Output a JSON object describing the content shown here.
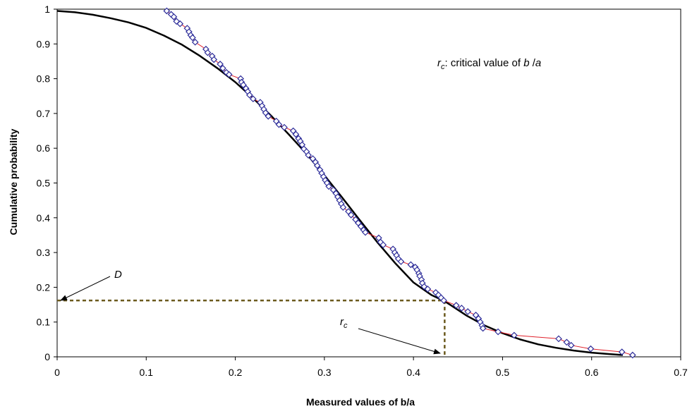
{
  "chart_data": {
    "type": "scatter",
    "xlabel": "Measured values of b/a",
    "ylabel": "Cumulative probability",
    "xlim": [
      0,
      0.7
    ],
    "ylim": [
      0,
      1
    ],
    "x_ticks": [
      0,
      0.1,
      0.2,
      0.3,
      0.4,
      0.5,
      0.6,
      0.7
    ],
    "x_tick_labels": [
      "0",
      "0.1",
      "0.2",
      "0.3",
      "0.4",
      "0.5",
      "0.6",
      "0.7"
    ],
    "y_ticks": [
      0,
      0.1,
      0.2,
      0.3,
      0.4,
      0.5,
      0.6,
      0.7,
      0.8,
      0.9,
      1
    ],
    "y_tick_labels": [
      "0",
      "0.1",
      "0.2",
      "0.3",
      "0.4",
      "0.5",
      "0.6",
      "0.7",
      "0.8",
      "0.9",
      "1"
    ],
    "grid": false,
    "legend": "none",
    "series": [
      {
        "style": "markers-with-line",
        "marker": "diamond",
        "marker_color": "#2e2e9a",
        "line_color": "#e0202a",
        "points": [
          [
            0.123,
            0.995
          ],
          [
            0.128,
            0.985
          ],
          [
            0.131,
            0.978
          ],
          [
            0.134,
            0.965
          ],
          [
            0.138,
            0.958
          ],
          [
            0.146,
            0.945
          ],
          [
            0.148,
            0.935
          ],
          [
            0.15,
            0.925
          ],
          [
            0.152,
            0.918
          ],
          [
            0.155,
            0.905
          ],
          [
            0.167,
            0.885
          ],
          [
            0.169,
            0.875
          ],
          [
            0.174,
            0.865
          ],
          [
            0.176,
            0.855
          ],
          [
            0.183,
            0.842
          ],
          [
            0.186,
            0.83
          ],
          [
            0.19,
            0.818
          ],
          [
            0.193,
            0.812
          ],
          [
            0.206,
            0.8
          ],
          [
            0.207,
            0.79
          ],
          [
            0.209,
            0.782
          ],
          [
            0.212,
            0.772
          ],
          [
            0.214,
            0.763
          ],
          [
            0.216,
            0.753
          ],
          [
            0.22,
            0.742
          ],
          [
            0.228,
            0.732
          ],
          [
            0.23,
            0.722
          ],
          [
            0.232,
            0.712
          ],
          [
            0.234,
            0.702
          ],
          [
            0.237,
            0.692
          ],
          [
            0.246,
            0.678
          ],
          [
            0.249,
            0.668
          ],
          [
            0.255,
            0.66
          ],
          [
            0.265,
            0.65
          ],
          [
            0.268,
            0.64
          ],
          [
            0.271,
            0.628
          ],
          [
            0.273,
            0.62
          ],
          [
            0.275,
            0.61
          ],
          [
            0.277,
            0.598
          ],
          [
            0.28,
            0.59
          ],
          [
            0.282,
            0.58
          ],
          [
            0.287,
            0.57
          ],
          [
            0.29,
            0.56
          ],
          [
            0.292,
            0.55
          ],
          [
            0.295,
            0.538
          ],
          [
            0.297,
            0.528
          ],
          [
            0.299,
            0.518
          ],
          [
            0.301,
            0.508
          ],
          [
            0.303,
            0.5
          ],
          [
            0.305,
            0.49
          ],
          [
            0.31,
            0.48
          ],
          [
            0.313,
            0.47
          ],
          [
            0.315,
            0.46
          ],
          [
            0.317,
            0.45
          ],
          [
            0.319,
            0.44
          ],
          [
            0.321,
            0.43
          ],
          [
            0.327,
            0.418
          ],
          [
            0.33,
            0.408
          ],
          [
            0.335,
            0.395
          ],
          [
            0.338,
            0.385
          ],
          [
            0.341,
            0.375
          ],
          [
            0.344,
            0.365
          ],
          [
            0.346,
            0.358
          ],
          [
            0.361,
            0.342
          ],
          [
            0.363,
            0.33
          ],
          [
            0.366,
            0.322
          ],
          [
            0.377,
            0.31
          ],
          [
            0.379,
            0.3
          ],
          [
            0.381,
            0.292
          ],
          [
            0.383,
            0.282
          ],
          [
            0.386,
            0.274
          ],
          [
            0.397,
            0.265
          ],
          [
            0.402,
            0.258
          ],
          [
            0.404,
            0.25
          ],
          [
            0.406,
            0.24
          ],
          [
            0.407,
            0.232
          ],
          [
            0.409,
            0.222
          ],
          [
            0.41,
            0.212
          ],
          [
            0.412,
            0.202
          ],
          [
            0.416,
            0.195
          ],
          [
            0.425,
            0.185
          ],
          [
            0.428,
            0.178
          ],
          [
            0.431,
            0.17
          ],
          [
            0.434,
            0.162
          ],
          [
            0.448,
            0.148
          ],
          [
            0.454,
            0.14
          ],
          [
            0.461,
            0.13
          ],
          [
            0.47,
            0.12
          ],
          [
            0.473,
            0.11
          ],
          [
            0.475,
            0.1
          ],
          [
            0.477,
            0.09
          ],
          [
            0.478,
            0.082
          ],
          [
            0.495,
            0.072
          ],
          [
            0.513,
            0.062
          ],
          [
            0.563,
            0.052
          ],
          [
            0.572,
            0.042
          ],
          [
            0.577,
            0.033
          ],
          [
            0.599,
            0.023
          ],
          [
            0.634,
            0.014
          ],
          [
            0.646,
            0.005
          ]
        ]
      },
      {
        "style": "line",
        "line_color": "#000000",
        "points": [
          [
            0.0,
            0.995
          ],
          [
            0.02,
            0.991
          ],
          [
            0.04,
            0.984
          ],
          [
            0.06,
            0.974
          ],
          [
            0.08,
            0.962
          ],
          [
            0.1,
            0.946
          ],
          [
            0.12,
            0.924
          ],
          [
            0.14,
            0.898
          ],
          [
            0.16,
            0.866
          ],
          [
            0.18,
            0.83
          ],
          [
            0.2,
            0.79
          ],
          [
            0.22,
            0.744
          ],
          [
            0.24,
            0.694
          ],
          [
            0.26,
            0.64
          ],
          [
            0.28,
            0.584
          ],
          [
            0.3,
            0.522
          ],
          [
            0.32,
            0.458
          ],
          [
            0.34,
            0.392
          ],
          [
            0.36,
            0.328
          ],
          [
            0.38,
            0.268
          ],
          [
            0.4,
            0.214
          ],
          [
            0.42,
            0.178
          ],
          [
            0.435,
            0.16
          ],
          [
            0.46,
            0.118
          ],
          [
            0.48,
            0.09
          ],
          [
            0.5,
            0.068
          ],
          [
            0.52,
            0.05
          ],
          [
            0.54,
            0.036
          ],
          [
            0.56,
            0.026
          ],
          [
            0.58,
            0.018
          ],
          [
            0.6,
            0.012
          ],
          [
            0.62,
            0.008
          ],
          [
            0.635,
            0.005
          ]
        ]
      }
    ],
    "annotations": {
      "legend_note_prefix": "r",
      "legend_note_sub": "c",
      "legend_note_mid": ": critical value of ",
      "legend_note_b": "b",
      "legend_note_slash": " /",
      "legend_note_a": "a",
      "d_label": "D",
      "rc_label": "r",
      "rc_sub": "c",
      "critical_point": [
        0.435,
        0.162
      ]
    }
  }
}
